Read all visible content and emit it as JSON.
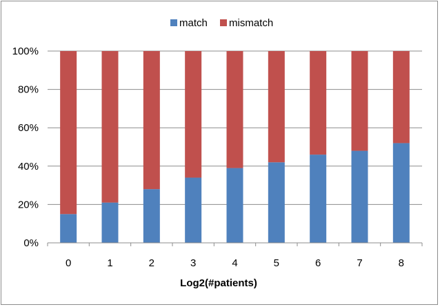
{
  "chart_data": {
    "type": "bar",
    "stacked": true,
    "percent": true,
    "categories": [
      "0",
      "1",
      "2",
      "3",
      "4",
      "5",
      "6",
      "7",
      "8"
    ],
    "series": [
      {
        "name": "match",
        "color": "#4f81bd",
        "values": [
          15,
          21,
          28,
          34,
          39,
          42,
          46,
          48,
          52
        ]
      },
      {
        "name": "mismatch",
        "color": "#c0504d",
        "values": [
          85,
          79,
          72,
          66,
          61,
          58,
          54,
          52,
          48
        ]
      }
    ],
    "title": "",
    "xlabel": "Log2(#patients)",
    "ylabel": "",
    "ylim": [
      0,
      100
    ],
    "yticks": [
      "0%",
      "20%",
      "40%",
      "60%",
      "80%",
      "100%"
    ],
    "grid": true,
    "legend": "top"
  }
}
